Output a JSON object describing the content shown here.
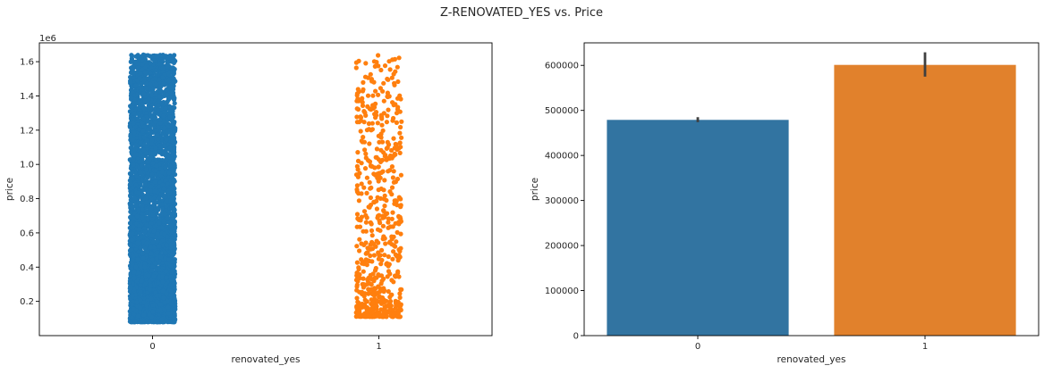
{
  "figure": {
    "suptitle": "Z-RENOVATED_YES vs. Price"
  },
  "chart_data": [
    {
      "type": "scatter",
      "variant": "strip",
      "xlabel": "renovated_yes",
      "ylabel": "price",
      "y_offset_text": "1e6",
      "categories": [
        "0",
        "1"
      ],
      "ylim": [
        0.0,
        1.71
      ],
      "yticks": [
        0.2,
        0.4,
        0.6,
        0.8,
        1.0,
        1.2,
        1.4,
        1.6
      ],
      "ytick_labels": [
        "0.2",
        "0.4",
        "0.6",
        "0.8",
        "1.0",
        "1.2",
        "1.4",
        "1.6"
      ],
      "grid": false,
      "series": [
        {
          "category": "0",
          "color": "#1f77b4",
          "y_min": 0.08,
          "y_max": 1.64,
          "point_count": 4200,
          "jitter": 0.1
        },
        {
          "category": "1",
          "color": "#ff7f0e",
          "y_min": 0.11,
          "y_max": 1.64,
          "point_count": 620,
          "jitter": 0.1
        }
      ]
    },
    {
      "type": "bar",
      "xlabel": "renovated_yes",
      "ylabel": "price",
      "categories": [
        "0",
        "1"
      ],
      "values": [
        479000,
        601000
      ],
      "error_bars": [
        [
          474000,
          485000
        ],
        [
          575000,
          629000
        ]
      ],
      "colors": [
        "#3274a1",
        "#e1812c"
      ],
      "ylim": [
        0,
        650000
      ],
      "yticks": [
        0,
        100000,
        200000,
        300000,
        400000,
        500000,
        600000
      ],
      "ytick_labels": [
        "0",
        "100000",
        "200000",
        "300000",
        "400000",
        "500000",
        "600000"
      ],
      "grid": false
    }
  ]
}
